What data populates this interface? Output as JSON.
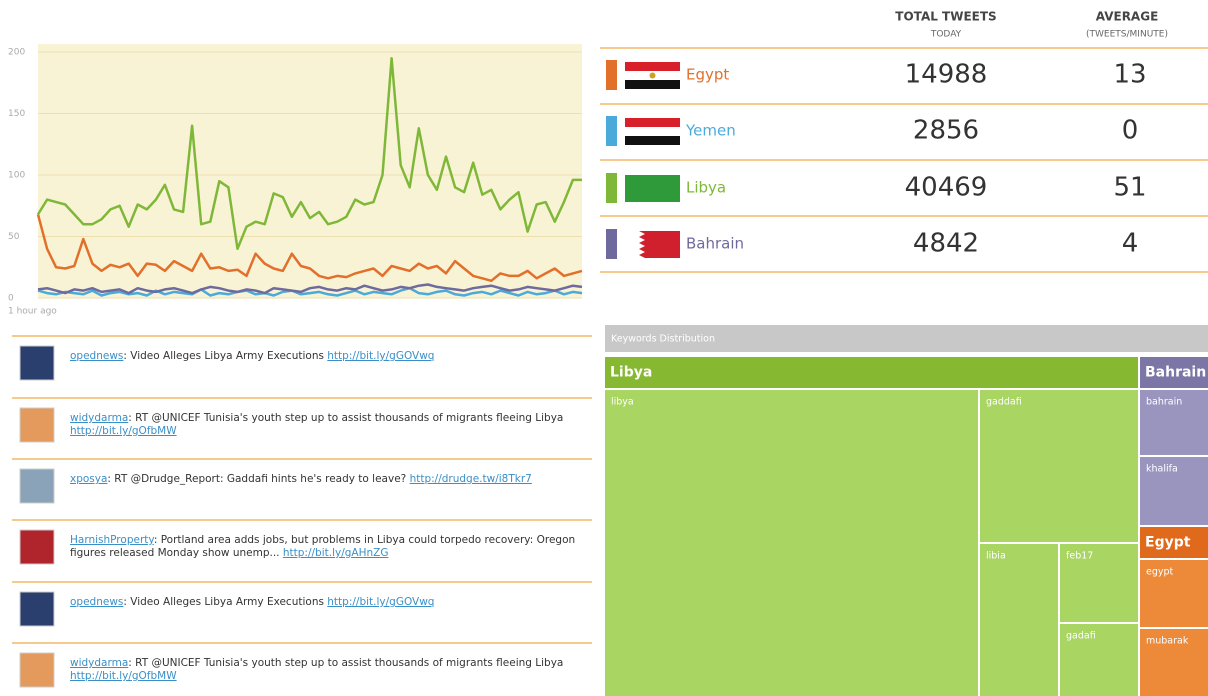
{
  "chart_data": {
    "type": "line",
    "annotation": "1 hour ago",
    "ylim": [
      0,
      200
    ],
    "yticks": [
      0,
      50,
      100,
      150,
      200
    ],
    "grid": true,
    "series": [
      {
        "name": "Egypt",
        "color": "#e2702a",
        "values": [
          68,
          40,
          25,
          24,
          26,
          48,
          28,
          22,
          27,
          25,
          28,
          18,
          28,
          27,
          22,
          30,
          26,
          22,
          36,
          24,
          25,
          22,
          23,
          18,
          36,
          28,
          24,
          22,
          36,
          26,
          24,
          18,
          16,
          18,
          17,
          20,
          22,
          24,
          18,
          26,
          24,
          22,
          28,
          24,
          26,
          20,
          30,
          24,
          18,
          16,
          14,
          20,
          18,
          18,
          22,
          16,
          20,
          24,
          18,
          20,
          22
        ]
      },
      {
        "name": "Yemen",
        "color": "#4aabdb",
        "values": [
          6,
          4,
          3,
          5,
          4,
          3,
          6,
          2,
          4,
          5,
          3,
          4,
          2,
          6,
          3,
          5,
          4,
          3,
          7,
          2,
          4,
          3,
          5,
          6,
          3,
          4,
          2,
          5,
          6,
          3,
          4,
          5,
          3,
          2,
          4,
          6,
          3,
          5,
          4,
          3,
          6,
          8,
          4,
          3,
          5,
          6,
          3,
          2,
          4,
          5,
          3,
          6,
          4,
          2,
          5,
          3,
          4,
          6,
          3,
          5,
          4
        ]
      },
      {
        "name": "Libya",
        "color": "#7fb838",
        "values": [
          68,
          80,
          78,
          76,
          68,
          60,
          60,
          64,
          72,
          75,
          58,
          76,
          72,
          80,
          92,
          72,
          70,
          140,
          60,
          62,
          95,
          90,
          40,
          58,
          62,
          60,
          85,
          82,
          66,
          78,
          65,
          70,
          60,
          62,
          66,
          80,
          76,
          78,
          100,
          195,
          108,
          90,
          138,
          100,
          88,
          115,
          90,
          86,
          110,
          84,
          88,
          72,
          80,
          86,
          54,
          76,
          78,
          62,
          78,
          96,
          96
        ]
      },
      {
        "name": "Bahrain",
        "color": "#6f6a9e",
        "values": [
          7,
          8,
          6,
          4,
          7,
          6,
          8,
          5,
          6,
          7,
          4,
          8,
          6,
          5,
          7,
          8,
          6,
          4,
          7,
          9,
          8,
          6,
          5,
          7,
          6,
          4,
          8,
          7,
          6,
          5,
          8,
          9,
          7,
          6,
          8,
          7,
          10,
          8,
          6,
          7,
          9,
          8,
          10,
          11,
          9,
          8,
          7,
          6,
          8,
          9,
          10,
          8,
          6,
          7,
          9,
          8,
          7,
          6,
          8,
          10,
          9
        ]
      }
    ]
  },
  "stats": {
    "headers": [
      {
        "title": "TOTAL TWEETS",
        "subtitle": "TODAY"
      },
      {
        "title": "AVERAGE",
        "subtitle": "(TWEETS/MINUTE)"
      }
    ],
    "rows": [
      {
        "country": "Egypt",
        "total": 14988,
        "average": 13
      },
      {
        "country": "Yemen",
        "total": 2856,
        "average": 0
      },
      {
        "country": "Libya",
        "total": 40469,
        "average": 51
      },
      {
        "country": "Bahrain",
        "total": 4842,
        "average": 4
      }
    ]
  },
  "tweets": [
    {
      "user": "opednews",
      "text": ": Video Alleges Libya Army Executions ",
      "link": "http://bit.ly/gGOVwq"
    },
    {
      "user": "widydarma",
      "text": ": RT @UNICEF Tunisia's youth step up to assist thousands of migrants fleeing Libya ",
      "link": "http://bit.ly/gOfbMW"
    },
    {
      "user": "xposya",
      "text": ": RT @Drudge_Report: Gaddafi hints he's ready to leave? ",
      "link": "http://drudge.tw/i8Tkr7"
    },
    {
      "user": "HarnishProperty",
      "text": ": Portland area adds jobs, but problems in Libya could torpedo recovery: Oregon figures released Monday show unemp... ",
      "link": "http://bit.ly/gAHnZG"
    },
    {
      "user": "opednews",
      "text": ": Video Alleges Libya Army Executions ",
      "link": "http://bit.ly/gGOVwq"
    },
    {
      "user": "widydarma",
      "text": ": RT @UNICEF Tunisia's youth step up to assist thousands of migrants fleeing Libya ",
      "link": "http://bit.ly/gOfbMW"
    }
  ],
  "treemap": {
    "title": "Keywords Distribution",
    "groups": [
      {
        "name": "Libya",
        "keywords": [
          "libya",
          "gaddafi",
          "libia",
          "feb17",
          "gadafi"
        ]
      },
      {
        "name": "Bahrain",
        "keywords": [
          "bahrain",
          "khalifa"
        ]
      },
      {
        "name": "Egypt",
        "keywords": [
          "egypt",
          "mubarak"
        ]
      }
    ]
  }
}
